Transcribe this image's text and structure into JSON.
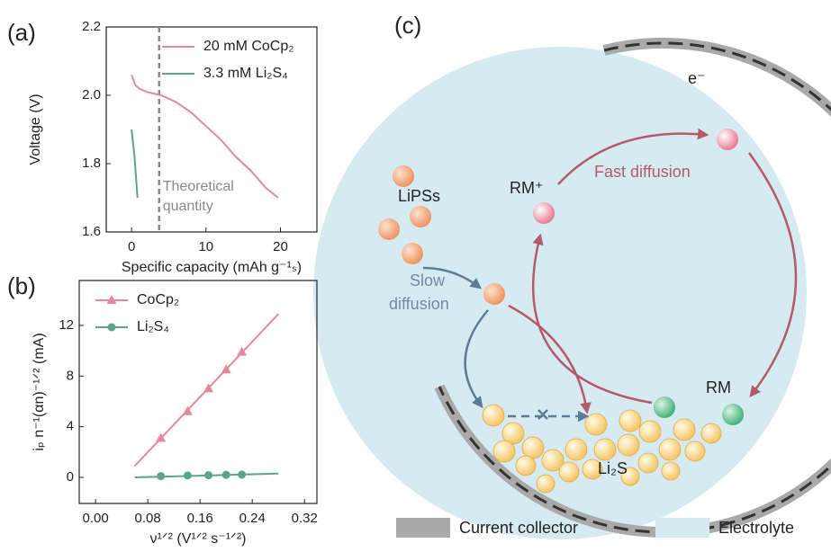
{
  "chart_data": [
    {
      "type": "line",
      "panel_label": "(a)",
      "xlabel": "Specific capacity (mAh g⁻¹ₛ)",
      "ylabel": "Voltage (V)",
      "xlim": [
        -3.4,
        24.9
      ],
      "ylim": [
        1.6,
        2.2
      ],
      "xticks": [
        0,
        10,
        20
      ],
      "yticks": [
        1.6,
        1.8,
        {
          "value": 2,
          "label": "2.0"
        },
        2.2
      ],
      "legend": "upper right",
      "vline": {
        "x": 3.7,
        "color": "#8a8a8a",
        "label": [
          "Theoretical",
          "quantity"
        ]
      },
      "series": [
        {
          "name": "20 mM CoCp₂",
          "color": "#e8879a",
          "x": [
            0,
            0.5,
            1,
            2,
            3,
            4,
            6,
            8,
            10,
            12,
            14,
            16,
            18,
            19.7
          ],
          "values": [
            2.06,
            2.03,
            2.02,
            2.01,
            2.005,
            2.0,
            1.98,
            1.95,
            1.91,
            1.87,
            1.82,
            1.78,
            1.73,
            1.7
          ]
        },
        {
          "name": "3.3 mM Li₂S₄",
          "color": "#5aa785",
          "x": [
            0,
            0.2,
            0.4,
            0.6,
            0.8
          ],
          "values": [
            1.9,
            1.86,
            1.82,
            1.76,
            1.7
          ]
        }
      ]
    },
    {
      "type": "line",
      "panel_label": "(b)",
      "xlabel": "ν¹ᐟ² (V¹ᐟ² s⁻¹ᐟ²)",
      "ylabel": "iₚ n⁻¹(αn)⁻¹ᐟ² (mA)",
      "xlim": [
        -0.025,
        0.339
      ],
      "ylim": [
        -2.06,
        15.55
      ],
      "xticks": [
        {
          "value": 0,
          "label": "0.00"
        },
        {
          "value": 0.08,
          "label": "0.08"
        },
        {
          "value": 0.16,
          "label": "0.16"
        },
        {
          "value": 0.24,
          "label": "0.24"
        },
        {
          "value": 0.32,
          "label": "0.32"
        }
      ],
      "yticks": [
        0,
        4,
        8,
        12
      ],
      "legend": "upper left",
      "series": [
        {
          "name": "CoCp₂",
          "color": "#e8879a",
          "marker": "triangle",
          "x": [
            0.1,
            0.141,
            0.173,
            0.2,
            0.224
          ],
          "values": [
            3.1,
            5.2,
            7.0,
            8.5,
            9.9
          ],
          "fit_x": [
            0.06,
            0.28
          ],
          "fit_values": [
            0.9,
            12.9
          ]
        },
        {
          "name": "Li₂S₄",
          "color": "#5aa785",
          "marker": "circle",
          "x": [
            0.1,
            0.141,
            0.173,
            0.2,
            0.224
          ],
          "values": [
            0.1,
            0.15,
            0.17,
            0.2,
            0.22
          ],
          "fit_x": [
            0.06,
            0.28
          ],
          "fit_values": [
            0.0,
            0.3
          ]
        }
      ]
    }
  ],
  "diagram": {
    "panel_label": "(c)",
    "electron": "e⁻",
    "rm_plus": "RM⁺",
    "fast": "Fast diffusion",
    "lipss": "LiPSs",
    "slow": [
      "Slow",
      "diffusion"
    ],
    "rm": "RM",
    "li2s": "Li₂S",
    "legend": [
      "Current collector",
      "Electrolyte"
    ]
  }
}
